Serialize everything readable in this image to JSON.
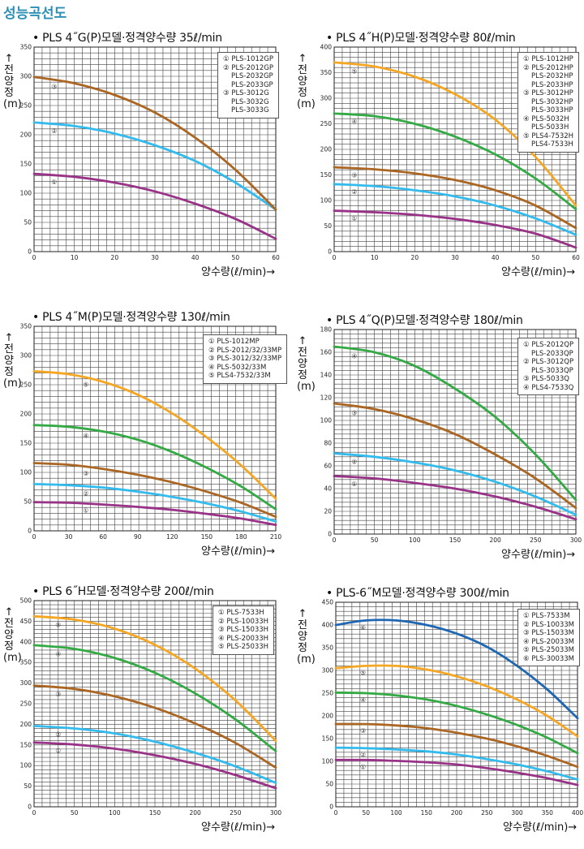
{
  "page_title": "성능곡선도",
  "axis_labels": {
    "ylabel_chars": [
      "↑",
      "전",
      "양",
      "정",
      "(m)"
    ],
    "xlabel": "양수량(ℓ/min)→"
  },
  "colors": {
    "purple": "#993388",
    "cyan": "#33bbee",
    "brown": "#aa6622",
    "green": "#33aa44",
    "orange": "#f5a623",
    "blue": "#1f66b3",
    "grid": "#444444"
  },
  "chart_data": [
    {
      "type": "line",
      "title": "• PLS 4˝G(P)모델·정격양수량 35ℓ/min",
      "xlim": [
        0,
        60
      ],
      "xticks": [
        0,
        10,
        20,
        30,
        40,
        50,
        60
      ],
      "ylim": [
        0,
        350
      ],
      "yticks": [
        0,
        50,
        100,
        150,
        200,
        250,
        300,
        350
      ],
      "grid": true,
      "legend_position": "top-right",
      "legend": [
        "① PLS-1012GP",
        "② PLS-2012GP",
        "PLS-2032GP",
        "PLS-2033GP",
        "③ PLS-3012G",
        "PLS-3032G",
        "PLS-3033G"
      ],
      "series": [
        {
          "name": "①",
          "color": "#993388",
          "label_x": 5,
          "x": [
            0,
            10,
            20,
            30,
            40,
            50,
            60
          ],
          "y": [
            133,
            128,
            118,
            103,
            82,
            56,
            22
          ]
        },
        {
          "name": "②",
          "color": "#33bbee",
          "label_x": 5,
          "x": [
            0,
            10,
            20,
            30,
            40,
            50,
            60
          ],
          "y": [
            221,
            215,
            202,
            182,
            155,
            118,
            72
          ]
        },
        {
          "name": "③",
          "color": "#aa6622",
          "label_x": 5,
          "x": [
            0,
            10,
            20,
            30,
            40,
            50,
            60
          ],
          "y": [
            299,
            288,
            268,
            238,
            195,
            140,
            72
          ]
        }
      ]
    },
    {
      "type": "line",
      "title": "• PLS 4˝H(P)모델·정격양수량 80ℓ/min",
      "xlim": [
        0,
        60
      ],
      "xticks": [
        0,
        10,
        20,
        30,
        40,
        50,
        60
      ],
      "ylim": [
        0,
        400
      ],
      "yticks": [
        0,
        50,
        100,
        150,
        200,
        250,
        300,
        350,
        400
      ],
      "grid": true,
      "legend_position": "top-right",
      "legend": [
        "① PLS-1012HP",
        "② PLS-2012HP",
        "PLS-2032HP",
        "PLS-2033HP",
        "③ PLS-3012HP",
        "PLS-3032HP",
        "PLS-3033HP",
        "④ PLS-5032H",
        "PLS-5033H",
        "⑤ PLS4-7532H",
        "PLS4-7533H"
      ],
      "series": [
        {
          "name": "①",
          "color": "#993388",
          "label_x": 5,
          "x": [
            0,
            10,
            20,
            30,
            40,
            50,
            60
          ],
          "y": [
            80,
            77,
            72,
            64,
            52,
            35,
            8
          ]
        },
        {
          "name": "②",
          "color": "#33bbee",
          "label_x": 5,
          "x": [
            0,
            10,
            20,
            30,
            40,
            50,
            60
          ],
          "y": [
            132,
            128,
            120,
            108,
            90,
            65,
            33
          ]
        },
        {
          "name": "③",
          "color": "#aa6622",
          "label_x": 5,
          "x": [
            0,
            10,
            20,
            30,
            40,
            50,
            60
          ],
          "y": [
            165,
            161,
            153,
            140,
            120,
            90,
            46
          ]
        },
        {
          "name": "④",
          "color": "#33aa44",
          "label_x": 5,
          "x": [
            0,
            10,
            20,
            30,
            40,
            50,
            60
          ],
          "y": [
            270,
            265,
            250,
            225,
            190,
            143,
            83
          ]
        },
        {
          "name": "⑤",
          "color": "#f5a623",
          "label_x": 5,
          "x": [
            0,
            10,
            20,
            30,
            40,
            50,
            60
          ],
          "y": [
            370,
            362,
            342,
            308,
            258,
            185,
            90
          ]
        }
      ]
    },
    {
      "type": "line",
      "title": "• PLS 4˝M(P)모델·정격양수량 130ℓ/min",
      "xlim": [
        0,
        210
      ],
      "xticks": [
        0,
        30,
        60,
        90,
        120,
        150,
        180,
        210
      ],
      "ylim": [
        0,
        350
      ],
      "yticks": [
        0,
        50,
        100,
        150,
        200,
        250,
        300,
        350
      ],
      "grid": true,
      "legend_position": "top-right",
      "legend": [
        "① PLS-1012MP",
        "② PLS-2012/32/33MP",
        "③ PLS-3012/32/33MP",
        "④ PLS-5032/33M",
        "⑤ PLS4-7532/33M"
      ],
      "series": [
        {
          "name": "①",
          "color": "#993388",
          "label_x": 45,
          "x": [
            0,
            30,
            60,
            90,
            120,
            150,
            180,
            210
          ],
          "y": [
            49,
            48,
            45,
            41,
            36,
            29,
            21,
            10
          ]
        },
        {
          "name": "②",
          "color": "#33bbee",
          "label_x": 45,
          "x": [
            0,
            30,
            60,
            90,
            120,
            150,
            180,
            210
          ],
          "y": [
            80,
            78,
            74,
            67,
            58,
            47,
            33,
            16
          ]
        },
        {
          "name": "③",
          "color": "#aa6622",
          "label_x": 45,
          "x": [
            0,
            30,
            60,
            90,
            120,
            150,
            180,
            210
          ],
          "y": [
            116,
            113,
            106,
            96,
            83,
            67,
            48,
            24
          ]
        },
        {
          "name": "④",
          "color": "#33aa44",
          "label_x": 45,
          "x": [
            0,
            30,
            60,
            90,
            120,
            150,
            180,
            210
          ],
          "y": [
            181,
            178,
            170,
            156,
            135,
            108,
            76,
            37
          ]
        },
        {
          "name": "⑤",
          "color": "#f5a623",
          "label_x": 45,
          "x": [
            0,
            30,
            60,
            90,
            120,
            150,
            180,
            210
          ],
          "y": [
            273,
            268,
            255,
            233,
            201,
            160,
            112,
            55
          ]
        }
      ]
    },
    {
      "type": "line",
      "title": "• PLS 4˝Q(P)모델·정격양수량 180ℓ/min",
      "xlim": [
        0,
        300
      ],
      "xticks": [
        0,
        50,
        100,
        150,
        200,
        250,
        300
      ],
      "ylim": [
        0,
        180
      ],
      "yticks": [
        0,
        20,
        40,
        60,
        80,
        100,
        120,
        140,
        160,
        180
      ],
      "grid": true,
      "legend_position": "top-right",
      "legend": [
        "① PLS-2012QP",
        "PLS-2033QP",
        "② PLS-3012QP",
        "PLS-3033QP",
        "③ PLS-5033Q",
        "④ PLS4-7533Q"
      ],
      "series": [
        {
          "name": "①",
          "color": "#993388",
          "label_x": 25,
          "x": [
            0,
            50,
            100,
            150,
            200,
            250,
            300
          ],
          "y": [
            51,
            49,
            45,
            40,
            33,
            24,
            13
          ]
        },
        {
          "name": "②",
          "color": "#33bbee",
          "label_x": 25,
          "x": [
            0,
            50,
            100,
            150,
            200,
            250,
            300
          ],
          "y": [
            71,
            68,
            63,
            56,
            46,
            33,
            17
          ]
        },
        {
          "name": "③",
          "color": "#aa6622",
          "label_x": 25,
          "x": [
            0,
            50,
            100,
            150,
            200,
            250,
            300
          ],
          "y": [
            115,
            110,
            101,
            88,
            70,
            49,
            23
          ]
        },
        {
          "name": "④",
          "color": "#33aa44",
          "label_x": 25,
          "x": [
            0,
            50,
            100,
            150,
            200,
            250,
            300
          ],
          "y": [
            165,
            160,
            148,
            128,
            103,
            70,
            30
          ]
        }
      ]
    },
    {
      "type": "line",
      "title": "• PLS 6˝H모델·정격양수량 200ℓ/min",
      "xlim": [
        0,
        300
      ],
      "xticks": [
        0,
        50,
        100,
        150,
        200,
        250,
        300
      ],
      "ylim": [
        0,
        500
      ],
      "yticks": [
        0,
        50,
        100,
        150,
        200,
        250,
        300,
        350,
        400,
        450,
        500
      ],
      "grid": true,
      "legend_position": "top-right",
      "legend": [
        "① PLS-7533H",
        "② PLS-10033H",
        "③ PLS-15033H",
        "④ PLS-20033H",
        "⑤ PLS-25033H"
      ],
      "series": [
        {
          "name": "①",
          "color": "#993388",
          "label_x": 30,
          "x": [
            0,
            50,
            100,
            150,
            200,
            250,
            300
          ],
          "y": [
            156,
            151,
            141,
            125,
            104,
            77,
            45
          ]
        },
        {
          "name": "②",
          "color": "#33bbee",
          "label_x": 30,
          "x": [
            0,
            50,
            100,
            150,
            200,
            250,
            300
          ],
          "y": [
            196,
            190,
            178,
            158,
            131,
            98,
            58
          ]
        },
        {
          "name": "③",
          "color": "#aa6622",
          "label_x": 30,
          "x": [
            0,
            50,
            100,
            150,
            200,
            250,
            300
          ],
          "y": [
            294,
            286,
            268,
            240,
            202,
            155,
            95
          ]
        },
        {
          "name": "④",
          "color": "#33aa44",
          "label_x": 30,
          "x": [
            0,
            50,
            100,
            150,
            200,
            250,
            300
          ],
          "y": [
            392,
            383,
            361,
            325,
            275,
            212,
            135
          ]
        },
        {
          "name": "⑤",
          "color": "#f5a623",
          "label_x": 30,
          "x": [
            0,
            50,
            100,
            150,
            200,
            250,
            300
          ],
          "y": [
            462,
            454,
            432,
            393,
            335,
            258,
            160
          ]
        }
      ]
    },
    {
      "type": "line",
      "title": "• PLS-6˝M모델·정격양수량 300ℓ/min",
      "xlim": [
        0,
        400
      ],
      "xticks": [
        0,
        25,
        50,
        75,
        100,
        125,
        150,
        175,
        200,
        225,
        250,
        275,
        300,
        325,
        350,
        375,
        400
      ],
      "xtick_labels": [
        "0",
        "",
        "50",
        "",
        "100",
        "",
        "150",
        "",
        "200",
        "",
        "250",
        "",
        "300",
        "",
        "350",
        "",
        "400"
      ],
      "ylim": [
        0,
        450
      ],
      "yticks": [
        0,
        50,
        100,
        150,
        200,
        250,
        300,
        350,
        400,
        450
      ],
      "grid": true,
      "legend_position": "top-right",
      "legend": [
        "① PLS-7533M",
        "② PLS-10033M",
        "③ PLS-15033M",
        "④ PLS-20033M",
        "⑤ PLS-25033M",
        "⑥ PLS-30033M"
      ],
      "series": [
        {
          "name": "①",
          "color": "#993388",
          "label_x": 45,
          "x": [
            0,
            50,
            100,
            150,
            200,
            250,
            300,
            350,
            400
          ],
          "y": [
            103,
            103,
            101,
            98,
            93,
            85,
            75,
            63,
            48
          ]
        },
        {
          "name": "②",
          "color": "#33bbee",
          "label_x": 45,
          "x": [
            0,
            50,
            100,
            150,
            200,
            250,
            300,
            350,
            400
          ],
          "y": [
            130,
            129,
            126,
            122,
            115,
            105,
            93,
            78,
            60
          ]
        },
        {
          "name": "③",
          "color": "#aa6622",
          "label_x": 45,
          "x": [
            0,
            50,
            100,
            150,
            200,
            250,
            300,
            350,
            400
          ],
          "y": [
            182,
            182,
            179,
            173,
            163,
            150,
            133,
            112,
            88
          ]
        },
        {
          "name": "④",
          "color": "#33aa44",
          "label_x": 45,
          "x": [
            0,
            50,
            100,
            150,
            200,
            250,
            300,
            350,
            400
          ],
          "y": [
            251,
            250,
            245,
            236,
            222,
            203,
            180,
            152,
            118
          ]
        },
        {
          "name": "⑤",
          "color": "#f5a623",
          "label_x": 45,
          "x": [
            0,
            50,
            100,
            150,
            200,
            250,
            300,
            350,
            400
          ],
          "y": [
            305,
            310,
            310,
            302,
            287,
            265,
            236,
            200,
            155
          ]
        },
        {
          "name": "⑥",
          "color": "#1f66b3",
          "label_x": 45,
          "x": [
            0,
            50,
            100,
            150,
            200,
            250,
            300,
            350,
            400
          ],
          "y": [
            400,
            410,
            410,
            400,
            381,
            352,
            310,
            258,
            195
          ]
        }
      ]
    }
  ]
}
